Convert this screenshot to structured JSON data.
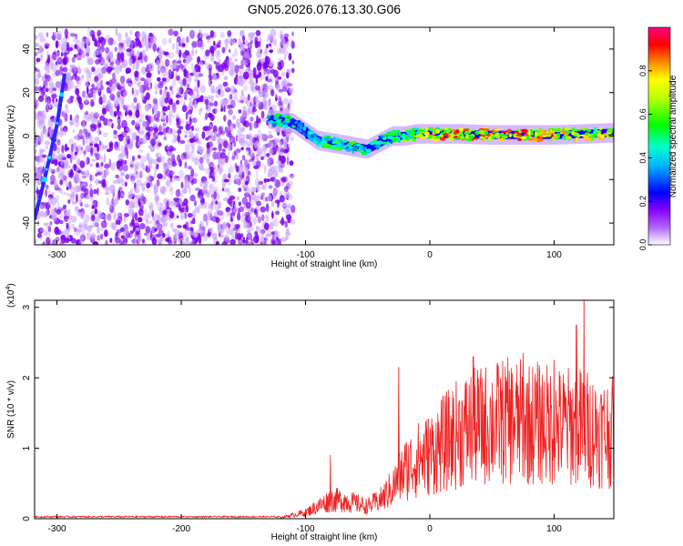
{
  "title": "GN05.2026.076.13.30.G06",
  "chart_data": [
    {
      "type": "heatmap",
      "name": "spectrogram",
      "xlabel": "Height of straight line (km)",
      "ylabel": "Frequency (Hz)",
      "xlim": [
        -318,
        148
      ],
      "ylim": [
        -50,
        50
      ],
      "xticks": [
        -300,
        -200,
        -100,
        0,
        100
      ],
      "yticks": [
        -40,
        -20,
        0,
        20,
        40
      ],
      "colorbar": {
        "label": "Normalized spectral amplitude",
        "range": [
          0.0,
          1.0
        ],
        "ticks": [
          0.0,
          0.2,
          0.4,
          0.6,
          0.8
        ],
        "tick_labels": [
          "0.0",
          "0.2",
          "0.4",
          "0.6",
          "0.8"
        ],
        "colormap": [
          "#ffffff",
          "#9b00ff",
          "#0000ff",
          "#00ffff",
          "#00ff00",
          "#ffff00",
          "#ff0000",
          "#ff0080"
        ]
      },
      "features": [
        {
          "name": "noise-region",
          "x_range": [
            -318,
            -120
          ],
          "y_range": [
            -50,
            48
          ],
          "amplitude": 0.12
        },
        {
          "name": "rising-trace",
          "x": [
            -318,
            -310,
            -300,
            -294
          ],
          "y": [
            -38,
            -20,
            5,
            28
          ],
          "amplitude": 0.45
        },
        {
          "name": "signal-band",
          "x": [
            -130,
            -110,
            -100,
            -90,
            -80,
            -70,
            -60,
            -50,
            -40,
            -30,
            -20,
            -10,
            0,
            25,
            50,
            75,
            100,
            125,
            148
          ],
          "y": [
            8,
            6,
            2,
            -2,
            -3,
            -4,
            -5,
            -6,
            -3,
            0,
            0,
            1,
            1,
            1,
            0.5,
            0.5,
            0.5,
            1,
            1.5
          ],
          "amplitude": [
            0.55,
            0.5,
            0.4,
            0.55,
            0.6,
            0.6,
            0.55,
            0.5,
            0.5,
            0.55,
            0.7,
            0.75,
            0.85,
            0.9,
            0.95,
            0.9,
            0.85,
            0.8,
            0.75
          ]
        }
      ]
    },
    {
      "type": "line",
      "name": "snr",
      "xlabel": "Height of straight line (km)",
      "ylabel": "SNR (10 * v/v)",
      "y_multiplier": "(x10",
      "y_multiplier_exp": "4",
      "y_multiplier_close": ")",
      "xlim": [
        -318,
        148
      ],
      "ylim": [
        0,
        3.1
      ],
      "xticks": [
        -300,
        -200,
        -100,
        0,
        100
      ],
      "yticks": [
        0,
        1,
        2,
        3
      ],
      "color": "#ee2222",
      "envelope": {
        "x": [
          -318,
          -120,
          -100,
          -90,
          -80,
          -70,
          -60,
          -50,
          -40,
          -30,
          -20,
          -10,
          0,
          10,
          20,
          30,
          40,
          50,
          60,
          70,
          80,
          90,
          100,
          110,
          120,
          130,
          140,
          148
        ],
        "y": [
          0.02,
          0.02,
          0.1,
          0.2,
          0.3,
          0.3,
          0.25,
          0.2,
          0.3,
          0.5,
          0.8,
          0.95,
          1.05,
          1.2,
          1.35,
          1.45,
          1.5,
          1.55,
          1.58,
          1.58,
          1.55,
          1.55,
          1.5,
          1.5,
          1.5,
          1.45,
          1.4,
          1.4
        ]
      },
      "peaks": [
        {
          "x": -80,
          "y": 0.9
        },
        {
          "x": -25,
          "y": 2.15
        },
        {
          "x": 35,
          "y": 2.3
        },
        {
          "x": 75,
          "y": 2.35
        },
        {
          "x": 100,
          "y": 2.25
        },
        {
          "x": 118,
          "y": 2.75
        },
        {
          "x": 124,
          "y": 3.1
        }
      ]
    }
  ]
}
